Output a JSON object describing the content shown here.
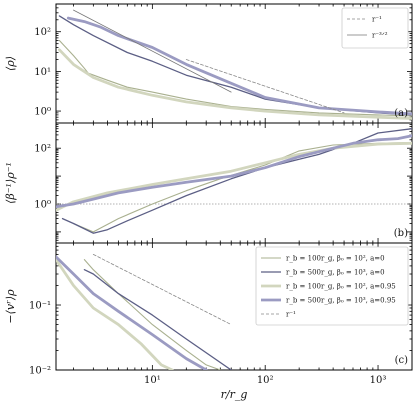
{
  "chart_data": [
    {
      "type": "line",
      "panel_tag": "(a)",
      "ylabel": "⟨ρ⟩",
      "xscale": "log",
      "yscale": "log",
      "xlim": [
        1.4,
        2000
      ],
      "ylim": [
        0.5,
        500
      ],
      "yticks": [
        {
          "v": 1,
          "t": "10⁰"
        },
        {
          "v": 10,
          "t": "10¹"
        },
        {
          "v": 100,
          "t": "10²"
        }
      ],
      "grid": false,
      "legend": {
        "position": "top-right",
        "entries": [
          {
            "label": "r⁻¹",
            "color": "#888888",
            "dash": "3,2",
            "width": 0.8
          },
          {
            "label": "r⁻³ᐟ²",
            "color": "#777777",
            "dash": "",
            "width": 0.8
          }
        ]
      },
      "series": [
        {
          "color": "#a9b08f",
          "width": 1.1,
          "points": [
            [
              1.5,
              60
            ],
            [
              2,
              25
            ],
            [
              2.5,
              12
            ],
            [
              2.7,
              9
            ],
            [
              4,
              6
            ],
            [
              6,
              4
            ],
            [
              10,
              3
            ],
            [
              20,
              2
            ],
            [
              50,
              1.3
            ],
            [
              100,
              1.1
            ],
            [
              300,
              0.9
            ],
            [
              1000,
              0.8
            ],
            [
              2000,
              0.75
            ]
          ]
        },
        {
          "color": "#5c5f85",
          "width": 1.3,
          "points": [
            [
              1.5,
              250
            ],
            [
              2,
              150
            ],
            [
              3,
              80
            ],
            [
              6,
              30
            ],
            [
              10,
              18
            ],
            [
              20,
              8
            ],
            [
              50,
              4
            ],
            [
              100,
              2
            ],
            [
              300,
              1.2
            ],
            [
              1000,
              0.9
            ],
            [
              2000,
              0.8
            ]
          ]
        },
        {
          "color": "#d2d6be",
          "width": 2.8,
          "points": [
            [
              1.5,
              35
            ],
            [
              2,
              15
            ],
            [
              3,
              7
            ],
            [
              5,
              4
            ],
            [
              10,
              2.5
            ],
            [
              20,
              1.7
            ],
            [
              50,
              1.2
            ],
            [
              100,
              1
            ],
            [
              300,
              0.8
            ],
            [
              1000,
              0.7
            ],
            [
              2000,
              0.65
            ]
          ]
        },
        {
          "color": "#9b9bc2",
          "width": 2.8,
          "points": [
            [
              1.8,
              220
            ],
            [
              2.5,
              180
            ],
            [
              3.5,
              130
            ],
            [
              5,
              80
            ],
            [
              10,
              40
            ],
            [
              20,
              15
            ],
            [
              50,
              5
            ],
            [
              100,
              2.2
            ],
            [
              300,
              1.2
            ],
            [
              1000,
              0.95
            ],
            [
              2000,
              0.85
            ]
          ]
        }
      ],
      "guides": [
        {
          "color": "#777777",
          "dash": "",
          "width": 0.8,
          "points": [
            [
              2,
              350
            ],
            [
              50,
              3
            ]
          ]
        },
        {
          "color": "#888888",
          "dash": "3,2",
          "width": 0.8,
          "points": [
            [
              20,
              20
            ],
            [
              500,
              0.9
            ]
          ]
        }
      ]
    },
    {
      "type": "line",
      "panel_tag": "(b)",
      "ylabel": "⟨β⁻¹⟩ρ⁻¹",
      "xscale": "log",
      "yscale": "log",
      "xlim": [
        1.4,
        2000
      ],
      "ylim": [
        0.04,
        800
      ],
      "yticks": [
        {
          "v": 1,
          "t": "10⁰"
        },
        {
          "v": 100,
          "t": "10²"
        }
      ],
      "hline": 1,
      "series": [
        {
          "color": "#a9b08f",
          "width": 1.1,
          "points": [
            [
              2,
              0.2
            ],
            [
              3,
              0.1
            ],
            [
              5,
              0.3
            ],
            [
              10,
              1
            ],
            [
              20,
              3
            ],
            [
              40,
              8
            ],
            [
              100,
              25
            ],
            [
              200,
              80
            ],
            [
              400,
              130
            ],
            [
              1000,
              150
            ],
            [
              2000,
              160
            ]
          ]
        },
        {
          "color": "#5c5f85",
          "width": 1.3,
          "points": [
            [
              1.6,
              0.3
            ],
            [
              2,
              0.2
            ],
            [
              3,
              0.09
            ],
            [
              4,
              0.12
            ],
            [
              6,
              0.25
            ],
            [
              10,
              0.6
            ],
            [
              20,
              2
            ],
            [
              50,
              8
            ],
            [
              100,
              20
            ],
            [
              200,
              40
            ],
            [
              300,
              60
            ],
            [
              400,
              90
            ],
            [
              600,
              150
            ],
            [
              1000,
              350
            ],
            [
              2000,
              500
            ]
          ]
        },
        {
          "color": "#d2d6be",
          "width": 2.8,
          "points": [
            [
              1.4,
              0.6
            ],
            [
              2,
              1.2
            ],
            [
              4,
              2.5
            ],
            [
              10,
              5
            ],
            [
              20,
              8
            ],
            [
              50,
              15
            ],
            [
              100,
              30
            ],
            [
              200,
              60
            ],
            [
              400,
              100
            ],
            [
              1000,
              140
            ],
            [
              2000,
              150
            ]
          ]
        },
        {
          "color": "#9b9bc2",
          "width": 2.8,
          "points": [
            [
              1.4,
              0.8
            ],
            [
              2,
              1
            ],
            [
              3,
              1.5
            ],
            [
              5,
              2.5
            ],
            [
              10,
              4
            ],
            [
              20,
              6
            ],
            [
              50,
              10
            ],
            [
              100,
              20
            ],
            [
              200,
              50
            ],
            [
              400,
              100
            ],
            [
              600,
              150
            ],
            [
              1000,
              200
            ],
            [
              1500,
              220
            ],
            [
              2000,
              280
            ]
          ]
        }
      ]
    },
    {
      "type": "line",
      "panel_tag": "(c)",
      "ylabel": "−⟨vʳ⟩ρ",
      "xlabel": "r/r_g",
      "xscale": "log",
      "yscale": "log",
      "xlim": [
        1.4,
        2000
      ],
      "ylim": [
        0.01,
        0.9
      ],
      "xticks": [
        {
          "v": 10,
          "t": "10¹"
        },
        {
          "v": 100,
          "t": "10²"
        },
        {
          "v": 1000,
          "t": "10³"
        }
      ],
      "yticks": [
        {
          "v": 0.01,
          "t": "10⁻²"
        },
        {
          "v": 0.1,
          "t": "10⁻¹"
        }
      ],
      "legend": {
        "position": "top-right",
        "entries": [
          {
            "label": "r_b = 100r_g, β₀ = 10², a=0",
            "color": "#a9b08f",
            "dash": "",
            "width": 1.1
          },
          {
            "label": "r_b = 500r_g, β₀ = 10³, a=0",
            "color": "#5c5f85",
            "dash": "",
            "width": 1.3
          },
          {
            "label": "r_b = 100r_g, β₀ = 10², a=0.95",
            "color": "#d2d6be",
            "dash": "",
            "width": 2.8
          },
          {
            "label": "r_b = 500r_g, β₀ = 10³, a=0.95",
            "color": "#9b9bc2",
            "dash": "",
            "width": 2.8
          },
          {
            "label": "r⁻¹",
            "color": "#888888",
            "dash": "3,2",
            "width": 0.8
          }
        ]
      },
      "series": [
        {
          "color": "#a9b08f",
          "width": 1.1,
          "points": [
            [
              2.5,
              0.5
            ],
            [
              3,
              0.35
            ],
            [
              5,
              0.15
            ],
            [
              10,
              0.05
            ],
            [
              20,
              0.02
            ],
            [
              30,
              0.012
            ],
            [
              40,
              0.01
            ]
          ]
        },
        {
          "color": "#5c5f85",
          "width": 1.3,
          "points": [
            [
              2.5,
              0.35
            ],
            [
              3,
              0.3
            ],
            [
              5,
              0.15
            ],
            [
              10,
              0.07
            ],
            [
              20,
              0.03
            ],
            [
              50,
              0.01
            ]
          ]
        },
        {
          "color": "#d2d6be",
          "width": 2.8,
          "points": [
            [
              1.4,
              0.5
            ],
            [
              2,
              0.2
            ],
            [
              3,
              0.09
            ],
            [
              5,
              0.05
            ],
            [
              8,
              0.025
            ],
            [
              12,
              0.012
            ],
            [
              15,
              0.01
            ]
          ]
        },
        {
          "color": "#9b9bc2",
          "width": 2.8,
          "points": [
            [
              1.4,
              0.55
            ],
            [
              2,
              0.3
            ],
            [
              3,
              0.15
            ],
            [
              5,
              0.08
            ],
            [
              10,
              0.035
            ],
            [
              20,
              0.015
            ],
            [
              30,
              0.01
            ]
          ]
        }
      ],
      "guides": [
        {
          "color": "#888888",
          "dash": "3,2",
          "width": 0.8,
          "points": [
            [
              3,
              0.6
            ],
            [
              50,
              0.05
            ]
          ]
        }
      ]
    }
  ]
}
